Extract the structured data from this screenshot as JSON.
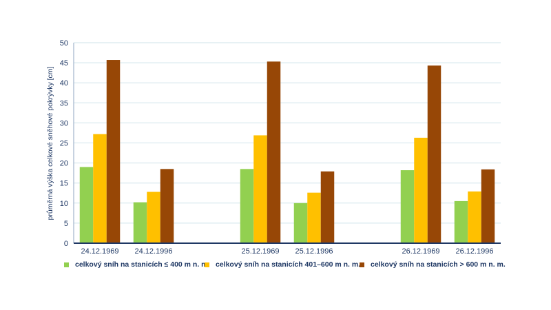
{
  "chart_data": {
    "type": "bar",
    "title": "",
    "xlabel": "",
    "ylabel": "průměrná výška celkové sněhové pokrývky [cm]",
    "ylim": [
      0,
      50
    ],
    "yticks": [
      0,
      5,
      10,
      15,
      20,
      25,
      30,
      35,
      40,
      45,
      50
    ],
    "grid": true,
    "legend_position": "bottom",
    "categories": [
      "24.12.1969",
      "24.12.1996",
      "25.12.1969",
      "25.12.1996",
      "26.12.1969",
      "26.12.1996"
    ],
    "series": [
      {
        "name": "celkový sníh na stanicích ≤ 400 m n. m.",
        "color": "#92d050",
        "values": [
          19.0,
          10.2,
          18.5,
          10.0,
          18.2,
          10.5
        ]
      },
      {
        "name": "celkový sníh na stanicích 401–600 m n. m.",
        "color": "#ffc000",
        "values": [
          27.2,
          12.8,
          26.9,
          12.6,
          26.3,
          12.9
        ]
      },
      {
        "name": "celkový sníh na stanicích > 600 m n. m.",
        "color": "#974706",
        "values": [
          45.7,
          18.5,
          45.3,
          17.9,
          44.3,
          18.4
        ]
      }
    ]
  }
}
